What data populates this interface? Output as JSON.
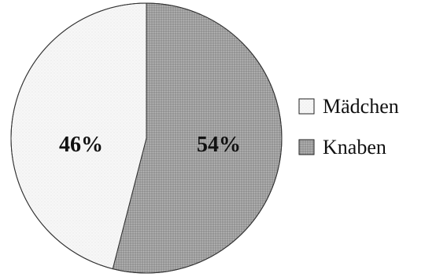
{
  "chart_data": {
    "type": "pie",
    "title": "",
    "categories": [
      "Mädchen",
      "Knaben"
    ],
    "values": [
      46,
      54
    ],
    "labels": [
      "46%",
      "54%"
    ],
    "colors": [
      "#f6f6f6",
      "#9c9c9c"
    ],
    "legend": {
      "placement": "right",
      "entries": [
        "Mädchen",
        "Knaben"
      ]
    }
  }
}
